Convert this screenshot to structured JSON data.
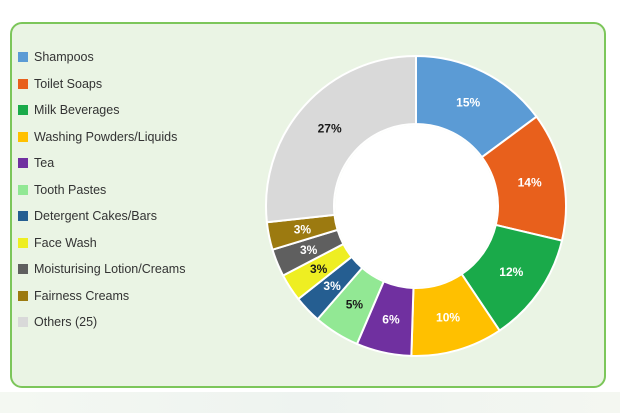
{
  "chart_data": {
    "type": "pie",
    "donut": true,
    "legend_position": "left",
    "slices": [
      {
        "label": "Shampoos",
        "value": 15,
        "value_label": "15%",
        "color": "#5b9bd5"
      },
      {
        "label": "Toilet Soaps",
        "value": 14,
        "value_label": "14%",
        "color": "#e8601c"
      },
      {
        "label": "Milk Beverages",
        "value": 12,
        "value_label": "12%",
        "color": "#1aaa4a"
      },
      {
        "label": "Washing Powders/Liquids",
        "value": 10,
        "value_label": "10%",
        "color": "#ffc000"
      },
      {
        "label": "Tea",
        "value": 6,
        "value_label": "6%",
        "color": "#7030a0"
      },
      {
        "label": "Tooth Pastes",
        "value": 5,
        "value_label": "5%",
        "color": "#92e894"
      },
      {
        "label": "Detergent Cakes/Bars",
        "value": 3,
        "value_label": "3%",
        "color": "#255e91"
      },
      {
        "label": "Face Wash",
        "value": 3,
        "value_label": "3%",
        "color": "#eeee22"
      },
      {
        "label": "Moisturising Lotion/Creams",
        "value": 3,
        "value_label": "3%",
        "color": "#5f5f5f"
      },
      {
        "label": "Fairness Creams",
        "value": 3,
        "value_label": "3%",
        "color": "#9c7a10"
      },
      {
        "label": "Others (25)",
        "value": 27,
        "value_label": "27%",
        "color": "#d9d9d9"
      }
    ]
  }
}
